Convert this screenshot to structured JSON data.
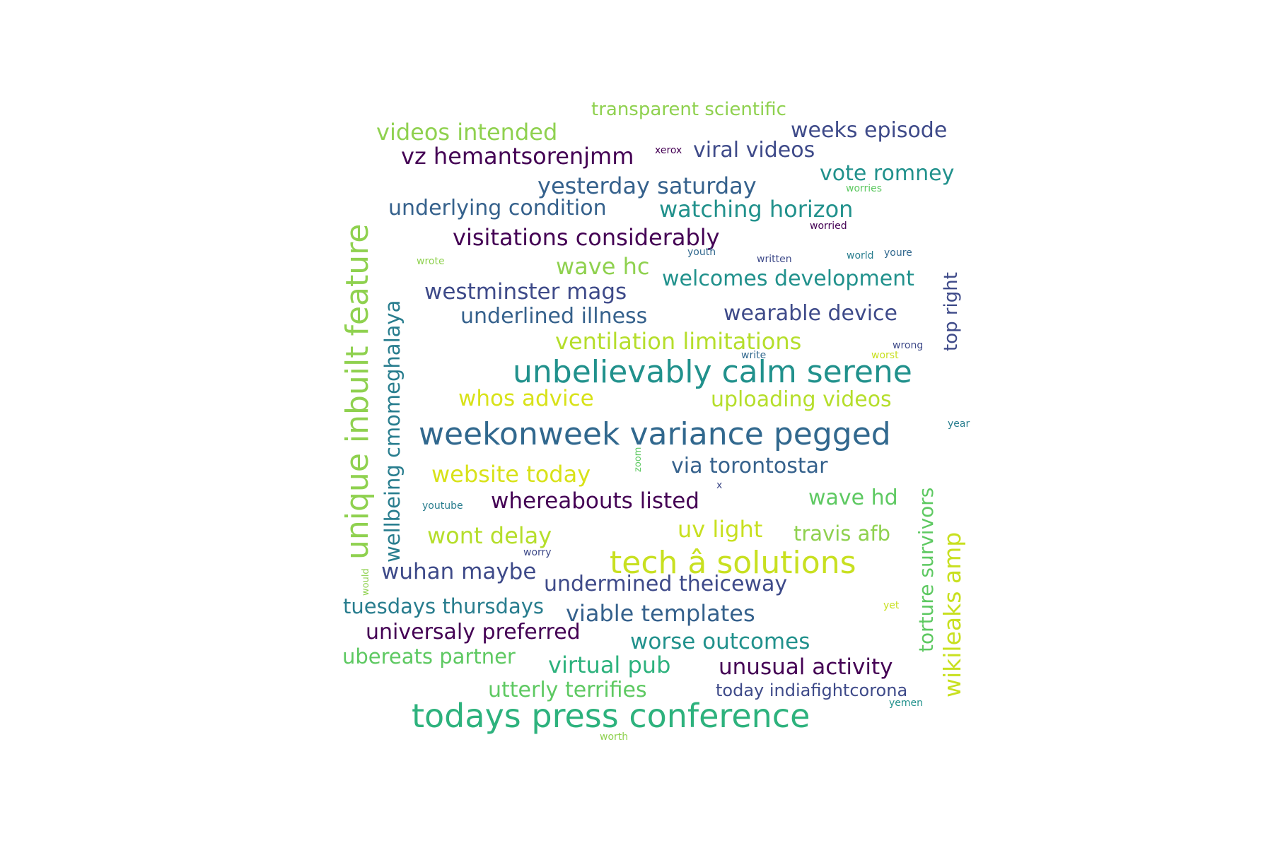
{
  "palette": {
    "dark_purple": "#440154",
    "indigo": "#3e4a89",
    "slate_blue": "#31688e",
    "blue": "#35618c",
    "teal_blue": "#287d8e",
    "teal": "#21918c",
    "sea_green": "#2db27d",
    "green": "#5ec962",
    "light_green": "#8fd14f",
    "lime": "#b5de2b",
    "yellow_green": "#c8e020",
    "gold": "#d8e219"
  },
  "words": [
    "transparent scientific",
    "videos intended",
    "weeks episode",
    "viral videos",
    "xerox",
    "vz hemantsorenjmm",
    "vote romney",
    "yesterday saturday",
    "worries",
    "underlying condition",
    "watching horizon",
    "worried",
    "visitations considerably",
    "youth",
    "youre",
    "world",
    "wrote",
    "written",
    "wave hc",
    "welcomes development",
    "westminster mags",
    "underlined illness",
    "wearable device",
    "ventilation limitations",
    "wrong",
    "write",
    "worst",
    "unbelievably calm serene",
    "whos advice",
    "uploading videos",
    "year",
    "weekonweek variance pegged",
    "website today",
    "via torontostar",
    "zoom",
    "x",
    "youtube",
    "whereabouts listed",
    "wave hd",
    "wont delay",
    "uv light",
    "travis afb",
    "worry",
    "tech â solutions",
    "wuhan maybe",
    "undermined theiceway",
    "would",
    "tuesdays thursdays",
    "viable templates",
    "yet",
    "universaly preferred",
    "worse outcomes",
    "ubereats partner",
    "virtual pub",
    "unusual activity",
    "utterly terrifies",
    "today indiafightcorona",
    "yemen",
    "todays press conference",
    "worth",
    "unique inbuilt feature",
    "wellbeing cmomeghalaya",
    "top right",
    "torture survivors",
    "wikileaks amp"
  ]
}
